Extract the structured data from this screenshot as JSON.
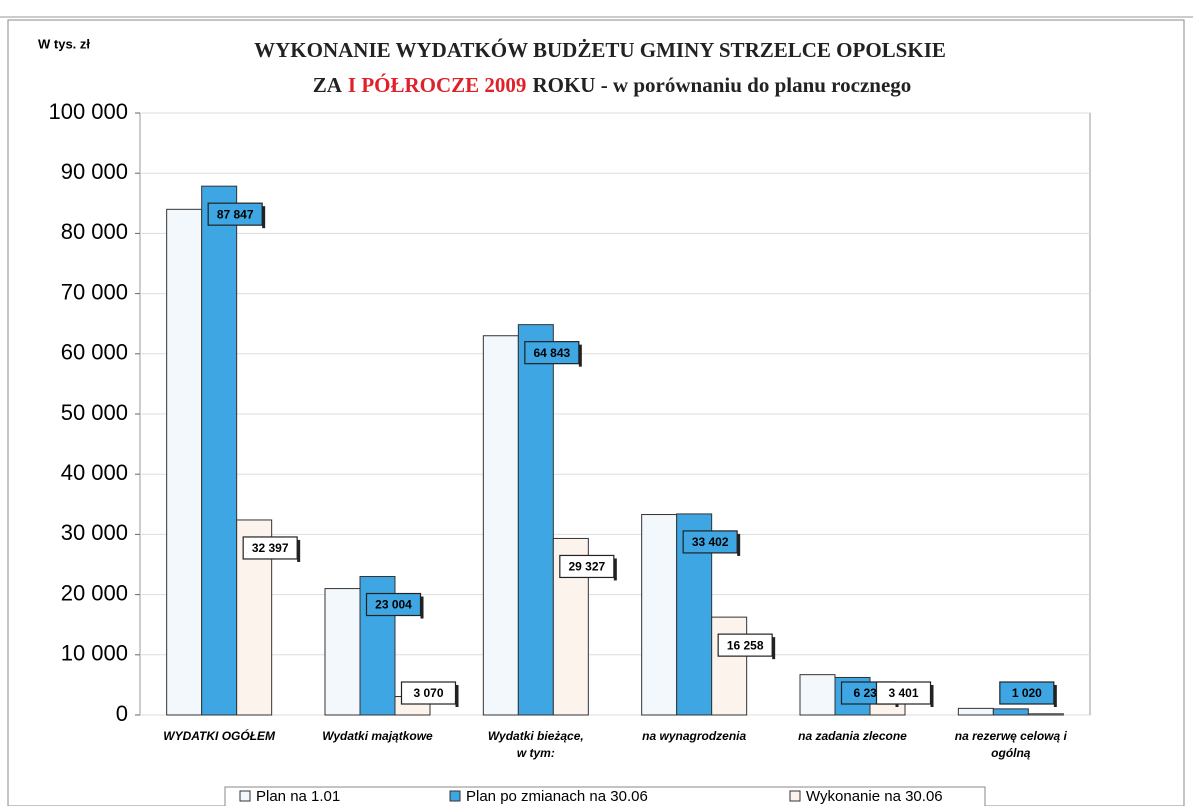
{
  "chart_data": {
    "type": "bar",
    "title": "WYKONANIE WYDATKÓW BUDŻETU GMINY STRZELCE OPOLSKIE",
    "subtitle": {
      "prefix": "ZA",
      "highlight": "I PÓŁROCZE 2009",
      "suffix": "ROKU - w porównaniu do planu rocznego"
    },
    "y_axis_label": "W tys. zł",
    "categories": [
      [
        "WYDATKI OGÓŁEM"
      ],
      [
        "Wydatki majątkowe"
      ],
      [
        "Wydatki bieżące,",
        "w tym:"
      ],
      [
        "na wynagrodzenia"
      ],
      [
        "na zadania zlecone"
      ],
      [
        "na rezerwę celową i",
        "ogólną"
      ]
    ],
    "series": [
      {
        "name": "Plan na 1.01",
        "color": "#f3f8fc",
        "values": [
          84000,
          21000,
          63000,
          33300,
          6700,
          1100
        ],
        "value_labels": [
          null,
          null,
          null,
          null,
          null,
          null
        ]
      },
      {
        "name": "Plan po zmianach na 30.06",
        "color": "#3ea6e2",
        "values": [
          87847,
          23004,
          64843,
          33402,
          6235,
          1020
        ],
        "value_labels": [
          "87 847",
          "23 004",
          "64 843",
          "33 402",
          "6 235",
          "1 020"
        ]
      },
      {
        "name": "Wykonanie na 30.06",
        "color": "#fcf3ec",
        "values": [
          32397,
          3070,
          29327,
          16258,
          3401,
          200
        ],
        "value_labels": [
          "32 397",
          "3 070",
          "29 327",
          "16 258",
          "3 401",
          null
        ]
      }
    ],
    "ylim": [
      0,
      100000
    ],
    "yticks": [
      {
        "value": 0,
        "label": "0"
      },
      {
        "value": 10000,
        "label": "10 000"
      },
      {
        "value": 20000,
        "label": "20 000"
      },
      {
        "value": 30000,
        "label": "30 000"
      },
      {
        "value": 40000,
        "label": "40 000"
      },
      {
        "value": 50000,
        "label": "50 000"
      },
      {
        "value": 60000,
        "label": "60 000"
      },
      {
        "value": 70000,
        "label": "70 000"
      },
      {
        "value": 80000,
        "label": "80 000"
      },
      {
        "value": 90000,
        "label": "90 000"
      },
      {
        "value": 100000,
        "label": "100 000"
      }
    ],
    "grid": true,
    "legend": "bottom"
  }
}
